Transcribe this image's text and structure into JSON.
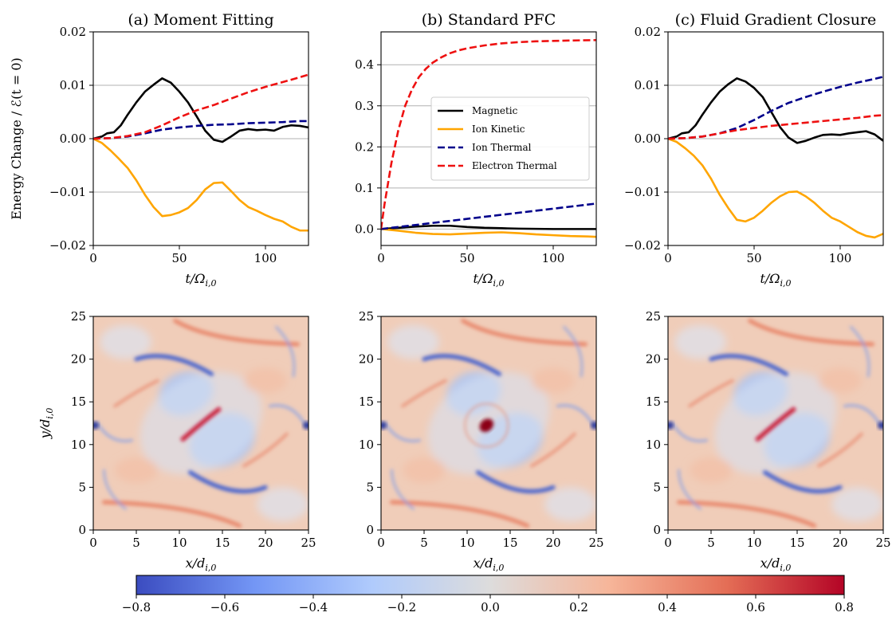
{
  "chart_data": [
    {
      "type": "line",
      "title": "(a) Moment Fitting",
      "xlabel": "t/Ω_{i,0}",
      "ylabel": "Energy Change / ℰ(t = 0)",
      "xlim": [
        0,
        125
      ],
      "ylim": [
        -0.02,
        0.02
      ],
      "xticks": [
        0,
        50,
        100
      ],
      "xtick_labels": [
        "0",
        "50",
        "100"
      ],
      "yticks": [
        -0.02,
        -0.01,
        0.0,
        0.01,
        0.02
      ],
      "ytick_labels": [
        "−0.02",
        "−0.01",
        "0.00",
        "0.01",
        "0.02"
      ],
      "grid": "y",
      "series": [
        {
          "color": "#000000",
          "dash": "solid",
          "x": [
            0,
            5,
            8,
            12,
            16,
            20,
            25,
            30,
            35,
            40,
            45,
            50,
            55,
            60,
            65,
            70,
            75,
            80,
            85,
            90,
            95,
            100,
            105,
            110,
            115,
            120,
            125
          ],
          "y": [
            0,
            0.0004,
            0.001,
            0.0012,
            0.0025,
            0.0045,
            0.0068,
            0.0088,
            0.0101,
            0.0113,
            0.0105,
            0.0088,
            0.0068,
            0.0042,
            0.0015,
            -0.0002,
            -0.0006,
            0.0004,
            0.0015,
            0.0018,
            0.0016,
            0.0017,
            0.0015,
            0.0022,
            0.0025,
            0.0024,
            0.0021
          ]
        },
        {
          "color": "#ffa500",
          "dash": "solid",
          "x": [
            0,
            5,
            10,
            15,
            20,
            25,
            30,
            35,
            40,
            45,
            50,
            55,
            60,
            65,
            70,
            75,
            80,
            85,
            90,
            95,
            100,
            105,
            110,
            115,
            120,
            125
          ],
          "y": [
            0,
            -0.0008,
            -0.0022,
            -0.0038,
            -0.0055,
            -0.0078,
            -0.0105,
            -0.0128,
            -0.0145,
            -0.0143,
            -0.0138,
            -0.013,
            -0.0115,
            -0.0095,
            -0.0083,
            -0.0082,
            -0.0098,
            -0.0115,
            -0.0128,
            -0.0135,
            -0.0143,
            -0.015,
            -0.0155,
            -0.0165,
            -0.0172,
            -0.0172
          ]
        },
        {
          "color": "#00008b",
          "dash": "dashed",
          "x": [
            0,
            10,
            20,
            30,
            40,
            50,
            60,
            70,
            80,
            90,
            100,
            110,
            120,
            125
          ],
          "y": [
            0,
            0.0001,
            0.0004,
            0.001,
            0.0017,
            0.0021,
            0.0024,
            0.0026,
            0.0027,
            0.0029,
            0.003,
            0.0031,
            0.0033,
            0.0033
          ]
        },
        {
          "color": "#ee1111",
          "dash": "dashed",
          "x": [
            0,
            10,
            20,
            30,
            40,
            50,
            60,
            70,
            80,
            90,
            100,
            110,
            120,
            125
          ],
          "y": [
            0,
            0.0001,
            0.0005,
            0.0012,
            0.0025,
            0.004,
            0.0053,
            0.0063,
            0.0075,
            0.0087,
            0.0097,
            0.0106,
            0.0115,
            0.012
          ]
        }
      ]
    },
    {
      "type": "line",
      "title": "(b) Standard PFC",
      "xlabel": "t/Ω_{i,0}",
      "xlim": [
        0,
        125
      ],
      "ylim": [
        -0.04,
        0.48
      ],
      "xticks": [
        0,
        50,
        100
      ],
      "xtick_labels": [
        "0",
        "50",
        "100"
      ],
      "yticks": [
        0.0,
        0.1,
        0.2,
        0.3,
        0.4
      ],
      "ytick_labels": [
        "0.0",
        "0.1",
        "0.2",
        "0.3",
        "0.4"
      ],
      "grid": "y",
      "legend": {
        "placement": "center-right",
        "entries": [
          "Magnetic",
          "Ion Kinetic",
          "Ion Thermal",
          "Electron Thermal"
        ]
      },
      "series": [
        {
          "name": "Magnetic",
          "color": "#000000",
          "dash": "solid",
          "x": [
            0,
            10,
            20,
            30,
            40,
            50,
            60,
            70,
            80,
            90,
            100,
            110,
            120,
            125
          ],
          "y": [
            0,
            0.003,
            0.006,
            0.008,
            0.008,
            0.005,
            0.003,
            0.002,
            0.001,
            0.0005,
            0.0,
            0.0,
            0.0,
            0.0
          ]
        },
        {
          "name": "Ion Kinetic",
          "color": "#ffa500",
          "dash": "solid",
          "x": [
            0,
            10,
            20,
            30,
            40,
            50,
            60,
            70,
            80,
            90,
            100,
            110,
            120,
            125
          ],
          "y": [
            0,
            -0.004,
            -0.009,
            -0.012,
            -0.013,
            -0.011,
            -0.009,
            -0.008,
            -0.01,
            -0.013,
            -0.015,
            -0.017,
            -0.018,
            -0.019
          ]
        },
        {
          "name": "Ion Thermal",
          "color": "#00008b",
          "dash": "dashed",
          "x": [
            0,
            125
          ],
          "y": [
            0,
            0.062
          ]
        },
        {
          "name": "Electron Thermal",
          "color": "#ee1111",
          "dash": "dashed",
          "x": [
            0,
            2,
            4,
            6,
            8,
            10,
            14,
            18,
            22,
            26,
            30,
            35,
            40,
            45,
            50,
            60,
            70,
            80,
            90,
            100,
            110,
            125
          ],
          "y": [
            0,
            0.06,
            0.11,
            0.16,
            0.2,
            0.24,
            0.3,
            0.34,
            0.37,
            0.39,
            0.405,
            0.418,
            0.428,
            0.435,
            0.44,
            0.447,
            0.452,
            0.455,
            0.457,
            0.458,
            0.459,
            0.46
          ]
        }
      ]
    },
    {
      "type": "line",
      "title": "(c) Fluid Gradient Closure",
      "xlabel": "t/Ω_{i,0}",
      "xlim": [
        0,
        125
      ],
      "ylim": [
        -0.02,
        0.02
      ],
      "xticks": [
        0,
        50,
        100
      ],
      "xtick_labels": [
        "0",
        "50",
        "100"
      ],
      "yticks": [
        -0.02,
        -0.01,
        0.0,
        0.01,
        0.02
      ],
      "ytick_labels": [
        "−0.02",
        "−0.01",
        "0.00",
        "0.01",
        "0.02"
      ],
      "grid": "y",
      "series": [
        {
          "color": "#000000",
          "dash": "solid",
          "x": [
            0,
            5,
            8,
            12,
            16,
            20,
            25,
            30,
            35,
            40,
            45,
            50,
            55,
            60,
            65,
            70,
            75,
            80,
            85,
            90,
            95,
            100,
            105,
            110,
            115,
            120,
            125
          ],
          "y": [
            0,
            0.0004,
            0.001,
            0.0012,
            0.0025,
            0.0045,
            0.0068,
            0.0088,
            0.0102,
            0.0113,
            0.0107,
            0.0095,
            0.0078,
            0.005,
            0.0022,
            0.0002,
            -0.0008,
            -0.0004,
            0.0002,
            0.0007,
            0.0008,
            0.0007,
            0.001,
            0.0012,
            0.0014,
            0.0008,
            -0.0004
          ]
        },
        {
          "color": "#ffa500",
          "dash": "solid",
          "x": [
            0,
            5,
            10,
            15,
            20,
            25,
            30,
            35,
            40,
            45,
            50,
            55,
            60,
            65,
            70,
            75,
            80,
            85,
            90,
            95,
            100,
            105,
            110,
            115,
            120,
            125
          ],
          "y": [
            0,
            -0.0006,
            -0.0018,
            -0.0032,
            -0.005,
            -0.0075,
            -0.0105,
            -0.013,
            -0.0152,
            -0.0155,
            -0.0148,
            -0.0135,
            -0.012,
            -0.0108,
            -0.01,
            -0.0099,
            -0.0108,
            -0.012,
            -0.0135,
            -0.0148,
            -0.0155,
            -0.0165,
            -0.0175,
            -0.0182,
            -0.0185,
            -0.0178
          ]
        },
        {
          "color": "#00008b",
          "dash": "dashed",
          "x": [
            0,
            10,
            20,
            30,
            40,
            50,
            60,
            70,
            80,
            90,
            100,
            110,
            120,
            125
          ],
          "y": [
            0,
            0.0001,
            0.0004,
            0.001,
            0.002,
            0.0035,
            0.0052,
            0.0067,
            0.0078,
            0.0088,
            0.0097,
            0.0105,
            0.0112,
            0.0116
          ]
        },
        {
          "color": "#ee1111",
          "dash": "dashed",
          "x": [
            0,
            10,
            20,
            30,
            40,
            50,
            60,
            70,
            80,
            90,
            100,
            110,
            120,
            125
          ],
          "y": [
            0,
            0.0001,
            0.0004,
            0.001,
            0.0016,
            0.002,
            0.0024,
            0.0027,
            0.003,
            0.0033,
            0.0036,
            0.0039,
            0.0043,
            0.0044
          ]
        }
      ]
    },
    {
      "type": "heatmap",
      "title": "",
      "xlabel": "x/d_{i,0}",
      "ylabel": "y/d_{i,0}",
      "xlim": [
        0,
        25
      ],
      "ylim": [
        0,
        25
      ],
      "ticks": [
        0,
        5,
        10,
        15,
        20,
        25
      ],
      "tick_labels": [
        "0",
        "5",
        "10",
        "15",
        "20",
        "25"
      ]
    },
    {
      "type": "heatmap",
      "title": "",
      "xlabel": "x/d_{i,0}",
      "xlim": [
        0,
        25
      ],
      "ylim": [
        0,
        25
      ],
      "ticks": [
        0,
        5,
        10,
        15,
        20,
        25
      ],
      "tick_labels": [
        "0",
        "5",
        "10",
        "15",
        "20",
        "25"
      ]
    },
    {
      "type": "heatmap",
      "title": "",
      "xlabel": "x/d_{i,0}",
      "xlim": [
        0,
        25
      ],
      "ylim": [
        0,
        25
      ],
      "ticks": [
        0,
        5,
        10,
        15,
        20,
        25
      ],
      "tick_labels": [
        "0",
        "5",
        "10",
        "15",
        "20",
        "25"
      ]
    }
  ],
  "colorbar": {
    "range": [
      -0.8,
      0.8
    ],
    "ticks": [
      -0.8,
      -0.6,
      -0.4,
      -0.2,
      0.0,
      0.2,
      0.4,
      0.6,
      0.8
    ],
    "tick_labels": [
      "−0.8",
      "−0.6",
      "−0.4",
      "−0.2",
      "0.0",
      "0.2",
      "0.4",
      "0.6",
      "0.8"
    ],
    "colors": [
      "#3b4cc0",
      "#7396f5",
      "#b0cbfc",
      "#dddcdc",
      "#f6b69a",
      "#e46e56",
      "#b40426"
    ]
  }
}
